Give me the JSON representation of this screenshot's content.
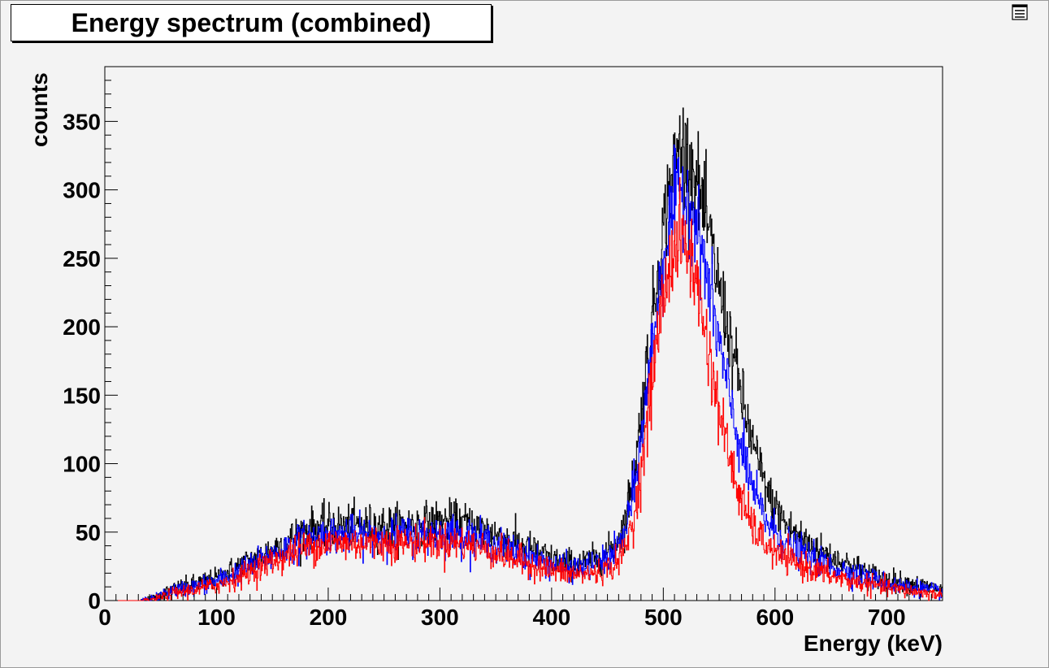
{
  "title": "Energy spectrum (combined)",
  "chart_data": {
    "type": "line",
    "title": "Energy spectrum (combined)",
    "xlabel": "Energy (keV)",
    "ylabel": "counts",
    "xlim": [
      0,
      750
    ],
    "ylim": [
      0,
      390
    ],
    "x_ticks": [
      0,
      100,
      200,
      300,
      400,
      500,
      600,
      700
    ],
    "y_ticks": [
      0,
      50,
      100,
      150,
      200,
      250,
      300,
      350
    ],
    "grid": false,
    "legend": "none",
    "series": [
      {
        "color": "#000000",
        "points": [
          [
            0,
            0
          ],
          [
            30,
            0
          ],
          [
            45,
            2
          ],
          [
            60,
            8
          ],
          [
            80,
            12
          ],
          [
            100,
            16
          ],
          [
            120,
            25
          ],
          [
            140,
            33
          ],
          [
            160,
            42
          ],
          [
            180,
            52
          ],
          [
            200,
            55
          ],
          [
            220,
            55
          ],
          [
            240,
            55
          ],
          [
            260,
            55
          ],
          [
            280,
            56
          ],
          [
            300,
            58
          ],
          [
            320,
            57
          ],
          [
            340,
            52
          ],
          [
            360,
            45
          ],
          [
            380,
            38
          ],
          [
            400,
            30
          ],
          [
            420,
            27
          ],
          [
            440,
            30
          ],
          [
            455,
            38
          ],
          [
            465,
            55
          ],
          [
            475,
            100
          ],
          [
            485,
            170
          ],
          [
            495,
            240
          ],
          [
            505,
            300
          ],
          [
            515,
            335
          ],
          [
            525,
            320
          ],
          [
            535,
            290
          ],
          [
            545,
            250
          ],
          [
            555,
            210
          ],
          [
            565,
            170
          ],
          [
            575,
            130
          ],
          [
            585,
            100
          ],
          [
            595,
            75
          ],
          [
            610,
            55
          ],
          [
            630,
            42
          ],
          [
            650,
            32
          ],
          [
            670,
            25
          ],
          [
            690,
            18
          ],
          [
            710,
            14
          ],
          [
            730,
            11
          ],
          [
            750,
            8
          ]
        ]
      },
      {
        "color": "#0000ff",
        "points": [
          [
            0,
            0
          ],
          [
            30,
            0
          ],
          [
            45,
            2
          ],
          [
            60,
            7
          ],
          [
            80,
            10
          ],
          [
            100,
            14
          ],
          [
            120,
            21
          ],
          [
            140,
            29
          ],
          [
            160,
            37
          ],
          [
            180,
            45
          ],
          [
            200,
            48
          ],
          [
            220,
            48
          ],
          [
            240,
            48
          ],
          [
            260,
            48
          ],
          [
            280,
            48
          ],
          [
            300,
            49
          ],
          [
            320,
            48
          ],
          [
            340,
            44
          ],
          [
            360,
            38
          ],
          [
            380,
            32
          ],
          [
            400,
            26
          ],
          [
            420,
            23
          ],
          [
            440,
            26
          ],
          [
            455,
            33
          ],
          [
            465,
            47
          ],
          [
            475,
            85
          ],
          [
            485,
            150
          ],
          [
            495,
            220
          ],
          [
            505,
            275
          ],
          [
            515,
            300
          ],
          [
            525,
            290
          ],
          [
            535,
            255
          ],
          [
            545,
            210
          ],
          [
            555,
            165
          ],
          [
            565,
            125
          ],
          [
            575,
            95
          ],
          [
            585,
            70
          ],
          [
            595,
            55
          ],
          [
            610,
            42
          ],
          [
            630,
            32
          ],
          [
            650,
            25
          ],
          [
            670,
            20
          ],
          [
            690,
            15
          ],
          [
            710,
            11
          ],
          [
            730,
            9
          ],
          [
            750,
            6
          ]
        ]
      },
      {
        "color": "#ff0000",
        "points": [
          [
            0,
            0
          ],
          [
            30,
            0
          ],
          [
            45,
            1
          ],
          [
            60,
            5
          ],
          [
            80,
            8
          ],
          [
            100,
            11
          ],
          [
            120,
            17
          ],
          [
            140,
            25
          ],
          [
            160,
            32
          ],
          [
            180,
            39
          ],
          [
            200,
            42
          ],
          [
            220,
            42
          ],
          [
            240,
            42
          ],
          [
            260,
            42
          ],
          [
            280,
            42
          ],
          [
            300,
            43
          ],
          [
            320,
            42
          ],
          [
            340,
            38
          ],
          [
            360,
            32
          ],
          [
            380,
            27
          ],
          [
            400,
            22
          ],
          [
            420,
            19
          ],
          [
            440,
            20
          ],
          [
            455,
            25
          ],
          [
            465,
            35
          ],
          [
            475,
            65
          ],
          [
            485,
            125
          ],
          [
            495,
            195
          ],
          [
            505,
            245
          ],
          [
            515,
            265
          ],
          [
            525,
            250
          ],
          [
            535,
            210
          ],
          [
            545,
            160
          ],
          [
            555,
            120
          ],
          [
            565,
            85
          ],
          [
            575,
            62
          ],
          [
            585,
            48
          ],
          [
            595,
            38
          ],
          [
            610,
            30
          ],
          [
            630,
            24
          ],
          [
            650,
            18
          ],
          [
            670,
            14
          ],
          [
            690,
            11
          ],
          [
            710,
            8
          ],
          [
            730,
            6
          ],
          [
            750,
            4
          ]
        ]
      }
    ]
  }
}
